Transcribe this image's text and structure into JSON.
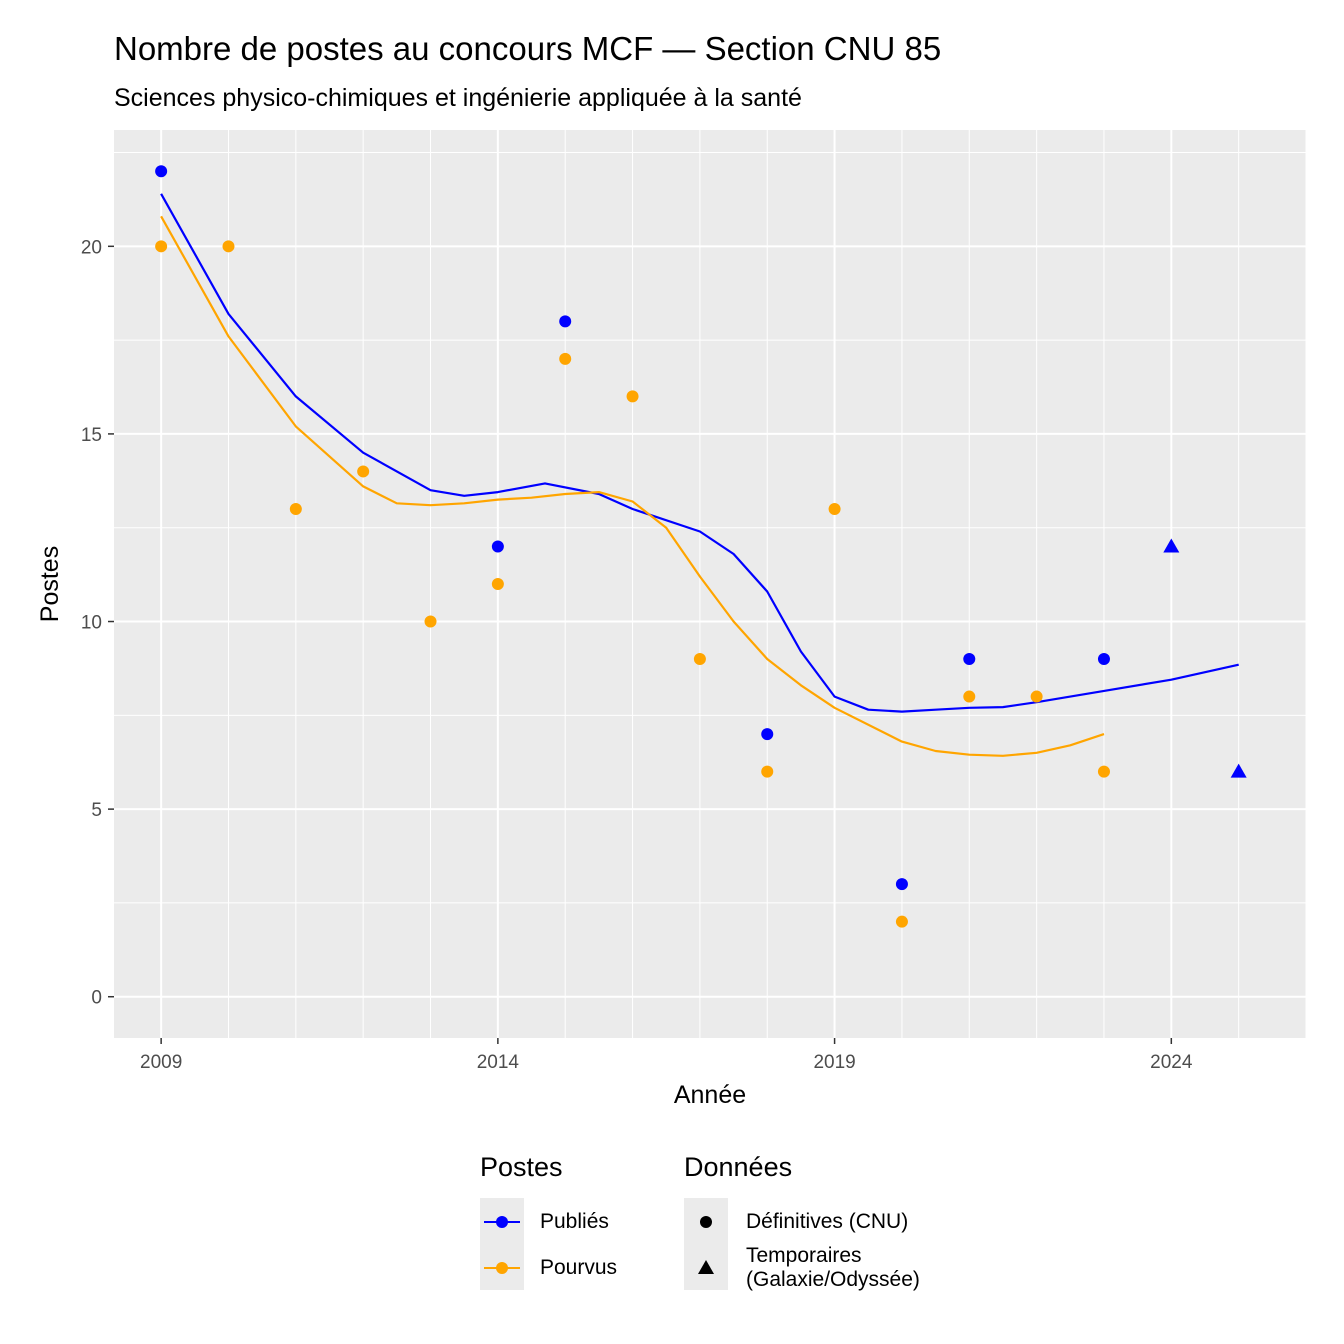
{
  "title": "Nombre de postes au concours MCF  —  Section CNU 85",
  "subtitle": "Sciences physico-chimiques et ingénierie appliquée à la santé",
  "chart_data": {
    "type": "scatter",
    "xlabel": "Année",
    "ylabel": "Postes",
    "xlim": [
      2008.3,
      2026.0
    ],
    "ylim": [
      -1.1,
      23.1
    ],
    "x_ticks": [
      "2009",
      "2014",
      "2019",
      "2024"
    ],
    "x_tick_values": [
      2009,
      2014,
      2019,
      2024
    ],
    "y_ticks": [
      "0",
      "5",
      "10",
      "15",
      "20"
    ],
    "y_tick_values": [
      0,
      5,
      10,
      15,
      20
    ],
    "grid": true,
    "legend_placement": "bottom",
    "series": [
      {
        "name": "Publiés",
        "color": "#0000ff",
        "points_definitive": [
          [
            2009,
            22
          ],
          [
            2014,
            12
          ],
          [
            2015,
            18
          ],
          [
            2018,
            7
          ],
          [
            2020,
            3
          ],
          [
            2021,
            9
          ],
          [
            2023,
            9
          ]
        ],
        "points_temporary": [
          [
            2024,
            12
          ],
          [
            2025,
            6
          ]
        ],
        "smooth": [
          [
            2009,
            21.4
          ],
          [
            2010,
            18.2
          ],
          [
            2011,
            16.0
          ],
          [
            2012,
            14.5
          ],
          [
            2013,
            13.5
          ],
          [
            2013.5,
            13.35
          ],
          [
            2014,
            13.45
          ],
          [
            2014.7,
            13.68
          ],
          [
            2015.5,
            13.4
          ],
          [
            2016,
            13.0
          ],
          [
            2017,
            12.4
          ],
          [
            2017.5,
            11.8
          ],
          [
            2018,
            10.8
          ],
          [
            2018.5,
            9.2
          ],
          [
            2019,
            8.0
          ],
          [
            2019.5,
            7.65
          ],
          [
            2020,
            7.6
          ],
          [
            2020.5,
            7.65
          ],
          [
            2021,
            7.7
          ],
          [
            2021.5,
            7.72
          ],
          [
            2022,
            7.85
          ],
          [
            2023,
            8.15
          ],
          [
            2024,
            8.45
          ],
          [
            2025,
            8.85
          ]
        ]
      },
      {
        "name": "Pourvus",
        "color": "#ffa500",
        "points_definitive": [
          [
            2009,
            20
          ],
          [
            2010,
            20
          ],
          [
            2011,
            13
          ],
          [
            2012,
            14
          ],
          [
            2013,
            10
          ],
          [
            2014,
            11
          ],
          [
            2015,
            17
          ],
          [
            2016,
            16
          ],
          [
            2017,
            9
          ],
          [
            2018,
            6
          ],
          [
            2019,
            13
          ],
          [
            2020,
            2
          ],
          [
            2021,
            8
          ],
          [
            2022,
            8
          ],
          [
            2023,
            6
          ]
        ],
        "points_temporary": [],
        "smooth": [
          [
            2009,
            20.8
          ],
          [
            2010,
            17.6
          ],
          [
            2011,
            15.2
          ],
          [
            2012,
            13.6
          ],
          [
            2012.5,
            13.15
          ],
          [
            2013,
            13.1
          ],
          [
            2013.5,
            13.15
          ],
          [
            2014,
            13.25
          ],
          [
            2014.5,
            13.3
          ],
          [
            2015,
            13.4
          ],
          [
            2015.5,
            13.45
          ],
          [
            2016,
            13.2
          ],
          [
            2016.5,
            12.5
          ],
          [
            2017,
            11.2
          ],
          [
            2017.5,
            10.0
          ],
          [
            2018,
            9.0
          ],
          [
            2018.5,
            8.3
          ],
          [
            2019,
            7.7
          ],
          [
            2020,
            6.8
          ],
          [
            2020.5,
            6.55
          ],
          [
            2021,
            6.45
          ],
          [
            2021.5,
            6.42
          ],
          [
            2022,
            6.5
          ],
          [
            2022.5,
            6.7
          ],
          [
            2023,
            7.0
          ]
        ]
      }
    ],
    "legend": {
      "postes_title": "Postes",
      "postes_items": [
        "Publiés",
        "Pourvus"
      ],
      "donnees_title": "Données",
      "donnees_items": [
        "Définitives (CNU)",
        "Temporaires",
        "(Galaxie/Odyssée)"
      ]
    }
  }
}
